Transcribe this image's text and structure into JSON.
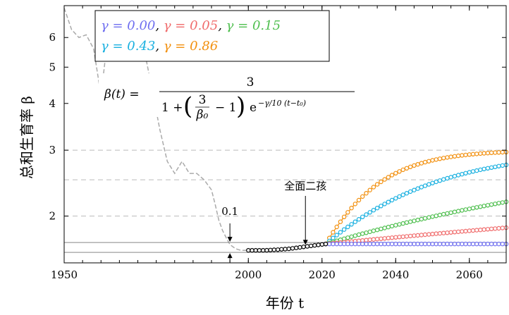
{
  "chart_data": {
    "type": "line",
    "xlabel": "年份 t",
    "ylabel": "总和生育率 β",
    "xlim": [
      1950,
      2070
    ],
    "ylim": [
      1.5,
      7.3
    ],
    "y_scale": "log",
    "x_ticks": [
      1950,
      2000,
      2020,
      2040,
      2060
    ],
    "x_minor_step": 5,
    "y_ticks": [
      2,
      3,
      4,
      5,
      6
    ],
    "y_ticklabels": [
      "2",
      "3",
      "4",
      "5",
      "6"
    ],
    "grid": {
      "horizontal_dashed_at": [
        2,
        2.5,
        3
      ]
    },
    "legend": {
      "placement": "top-left",
      "rows": [
        [
          {
            "text": "γ = 0.00",
            "color": "#6f6ff0"
          },
          {
            "text": "γ = 0.05",
            "color": "#f06c6c"
          },
          {
            "text": "γ = 0.15",
            "color": "#4fbf4f"
          }
        ],
        [
          {
            "text": "γ = 0.43",
            "color": "#1ab0e0"
          },
          {
            "text": "γ = 0.86",
            "color": "#f2900f"
          }
        ]
      ]
    },
    "formula": {
      "lhs": "β(t) =",
      "numerator": "3",
      "denominator_start": "1 +",
      "inner_fraction_numerator": "3",
      "inner_fraction_denominator": "β₀",
      "denominator_rest": "− 1",
      "exp_base": "e",
      "exponent": "−γ/10 (t−t₀)"
    },
    "annotations": {
      "policy": "全面二孩",
      "policy_year": 2015.5,
      "band": "0.1",
      "band_year": 1995,
      "band_range": [
        1.6,
        1.7
      ]
    },
    "historical": {
      "name": "",
      "color": "#aaaaaa",
      "x": [
        1950,
        1952,
        1954,
        1956,
        1958,
        1960,
        1962,
        1964,
        1966,
        1968,
        1970,
        1972,
        1974,
        1976,
        1978,
        1980,
        1982,
        1984,
        1986,
        1988,
        1990,
        1991,
        1992,
        1993,
        1994,
        1995,
        1996,
        1997,
        1998,
        1999,
        2000
      ],
      "y": [
        7.2,
        6.3,
        6.0,
        6.1,
        5.6,
        4.2,
        6.2,
        6.3,
        6.4,
        6.6,
        6.2,
        5.4,
        4.3,
        3.4,
        2.8,
        2.6,
        2.8,
        2.6,
        2.6,
        2.5,
        2.35,
        2.15,
        1.95,
        1.83,
        1.75,
        1.68,
        1.65,
        1.63,
        1.62,
        1.62,
        1.62
      ]
    },
    "observed": {
      "name": "",
      "color": "#000000",
      "x": [
        2000,
        2001,
        2002,
        2003,
        2004,
        2005,
        2006,
        2007,
        2008,
        2009,
        2010,
        2011,
        2012,
        2013,
        2014,
        2015,
        2016,
        2017,
        2018,
        2019,
        2020,
        2021
      ],
      "y": [
        1.62,
        1.62,
        1.62,
        1.62,
        1.62,
        1.621,
        1.623,
        1.625,
        1.627,
        1.63,
        1.632,
        1.635,
        1.64,
        1.645,
        1.65,
        1.655,
        1.66,
        1.665,
        1.67,
        1.675,
        1.68,
        1.685
      ]
    },
    "projection": {
      "t0": 2021,
      "beta0": 1.685,
      "x_start": 2021,
      "x_end": 2070,
      "series": [
        {
          "name": "γ = 0.00",
          "gamma": 0.0,
          "color": "#6f6ff0"
        },
        {
          "name": "γ = 0.05",
          "gamma": 0.05,
          "color": "#f06c6c"
        },
        {
          "name": "γ = 0.15",
          "gamma": 0.15,
          "color": "#4fbf4f"
        },
        {
          "name": "γ = 0.43",
          "gamma": 0.43,
          "color": "#1ab0e0"
        },
        {
          "name": "γ = 0.86",
          "gamma": 0.86,
          "color": "#f2900f"
        }
      ]
    }
  }
}
